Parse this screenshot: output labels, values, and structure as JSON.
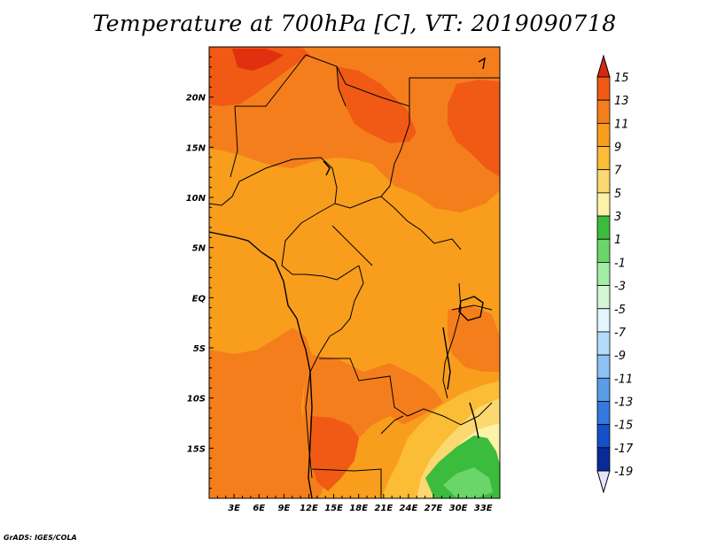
{
  "title": "Temperature at 700hPa [C], VT: 2019090718",
  "credit": "GrADS: IGES/COLA",
  "map": {
    "lon_labels": [
      "3E",
      "6E",
      "9E",
      "12E",
      "15E",
      "18E",
      "21E",
      "24E",
      "27E",
      "30E",
      "33E"
    ],
    "lat_labels": [
      "20N",
      "15N",
      "10N",
      "5N",
      "EQ",
      "5S",
      "10S",
      "15S"
    ],
    "lon_range": [
      0,
      35
    ],
    "lat_range": [
      -20,
      25
    ]
  },
  "colorbar": {
    "labels": [
      "15",
      "13",
      "11",
      "9",
      "7",
      "5",
      "3",
      "1",
      "-1",
      "-3",
      "-5",
      "-7",
      "-9",
      "-11",
      "-13",
      "-15",
      "-17",
      "-19"
    ],
    "colors": [
      "#e03010",
      "#f05a14",
      "#f57e1c",
      "#f89e1c",
      "#fbbc36",
      "#fcd870",
      "#fcf2a8",
      "#3cbc3c",
      "#6ad66a",
      "#a4eca4",
      "#d4f6d4",
      "#e4f6ff",
      "#b4dcfa",
      "#8cc2f4",
      "#5a9ce6",
      "#3478e0",
      "#1450c8",
      "#0a2a9a",
      "#061660"
    ],
    "upper_arrow_color": "#d42810",
    "lower_arrow_color": "#e4e4fa"
  }
}
